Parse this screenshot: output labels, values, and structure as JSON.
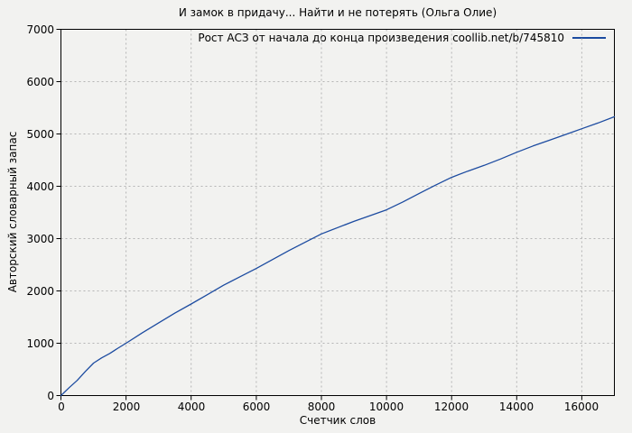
{
  "chart_data": {
    "type": "line",
    "title": "И замок в придачу... Найти и не потерять (Ольга Олие)",
    "xlabel": "Счетчик слов",
    "ylabel": "Авторский словарный запас",
    "xlim": [
      0,
      17000
    ],
    "ylim": [
      0,
      7000
    ],
    "x_ticks": [
      0,
      2000,
      4000,
      6000,
      8000,
      10000,
      12000,
      14000,
      16000
    ],
    "y_ticks": [
      0,
      1000,
      2000,
      3000,
      4000,
      5000,
      6000,
      7000
    ],
    "grid": true,
    "legend_position": "top-right-inside",
    "series": [
      {
        "name": "Рост АСЗ от начала до конца произведения coollib.net/b/745810",
        "color": "#1c4ba0",
        "points": [
          [
            0,
            0
          ],
          [
            250,
            150
          ],
          [
            500,
            290
          ],
          [
            750,
            460
          ],
          [
            1000,
            620
          ],
          [
            1250,
            720
          ],
          [
            1500,
            805
          ],
          [
            1750,
            905
          ],
          [
            2000,
            1000
          ],
          [
            2500,
            1200
          ],
          [
            3000,
            1390
          ],
          [
            3500,
            1575
          ],
          [
            4000,
            1750
          ],
          [
            4500,
            1930
          ],
          [
            5000,
            2110
          ],
          [
            5500,
            2270
          ],
          [
            6000,
            2430
          ],
          [
            6500,
            2600
          ],
          [
            7000,
            2770
          ],
          [
            7500,
            2930
          ],
          [
            8000,
            3090
          ],
          [
            8500,
            3210
          ],
          [
            9000,
            3330
          ],
          [
            9500,
            3440
          ],
          [
            10000,
            3550
          ],
          [
            10500,
            3700
          ],
          [
            11000,
            3860
          ],
          [
            11500,
            4020
          ],
          [
            12000,
            4170
          ],
          [
            12500,
            4290
          ],
          [
            13000,
            4400
          ],
          [
            13500,
            4520
          ],
          [
            14000,
            4650
          ],
          [
            14500,
            4770
          ],
          [
            15000,
            4880
          ],
          [
            15500,
            4990
          ],
          [
            16000,
            5100
          ],
          [
            16500,
            5210
          ],
          [
            17000,
            5330
          ]
        ]
      }
    ],
    "colors": {
      "background": "#f2f2f0",
      "grid": "#b4b4b4",
      "axis": "#000000",
      "text": "#000000"
    }
  }
}
